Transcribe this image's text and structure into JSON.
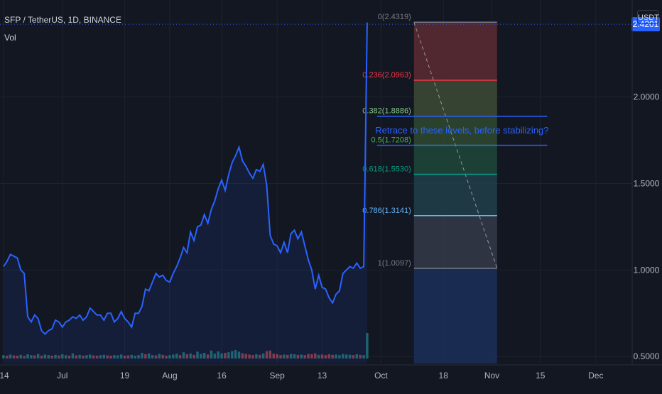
{
  "header": {
    "symbol": "SFP / TetherUS, 1D, BINANCE",
    "indicator": "Vol"
  },
  "unit_button": "USDT",
  "colors": {
    "background": "#131722",
    "price_line": "#2962ff",
    "grid": "#1e222d",
    "axis_text": "#b2b5be",
    "vol_up": "#26a69a",
    "vol_down": "#ef5350",
    "annotation": "#2962ff"
  },
  "chart_data": {
    "type": "line",
    "series": [
      {
        "values": [
          1.02,
          1.05,
          1.09,
          1.08,
          1.07,
          1.0,
          0.98,
          0.73,
          0.7,
          0.74,
          0.72,
          0.65,
          0.63,
          0.65,
          0.66,
          0.71,
          0.7,
          0.67,
          0.7,
          0.71,
          0.73,
          0.72,
          0.74,
          0.71,
          0.73,
          0.78,
          0.76,
          0.74,
          0.74,
          0.71,
          0.75,
          0.75,
          0.7,
          0.72,
          0.76,
          0.72,
          0.7,
          0.67,
          0.75,
          0.75,
          0.79,
          0.89,
          0.88,
          0.93,
          0.98,
          0.96,
          0.97,
          0.94,
          0.93,
          0.98,
          1.02,
          1.07,
          1.13,
          1.1,
          1.22,
          1.17,
          1.25,
          1.26,
          1.32,
          1.27,
          1.35,
          1.4,
          1.47,
          1.52,
          1.46,
          1.55,
          1.62,
          1.66,
          1.71,
          1.63,
          1.6,
          1.56,
          1.53,
          1.58,
          1.57,
          1.61,
          1.49,
          1.2,
          1.15,
          1.14,
          1.1,
          1.16,
          1.1,
          1.21,
          1.23,
          1.18,
          1.22,
          1.14,
          1.06,
          1.0,
          0.89,
          0.97,
          0.9,
          0.89,
          0.84,
          0.81,
          0.86,
          0.88,
          0.98,
          1.0,
          1.02,
          1.01,
          1.04,
          1.01,
          1.02,
          2.43
        ]
      }
    ],
    "volume": {
      "values": [
        1.2,
        1.0,
        1.4,
        1.1,
        1.0,
        1.3,
        0.9,
        1.5,
        1.2,
        1.1,
        1.6,
        1.0,
        1.4,
        1.2,
        1.0,
        1.3,
        1.1,
        1.5,
        1.2,
        1.0,
        1.8,
        1.1,
        1.3,
        1.0,
        1.2,
        1.4,
        1.1,
        1.0,
        1.2,
        1.3,
        1.1,
        1.0,
        1.2,
        1.1,
        1.4,
        1.0,
        1.1,
        1.3,
        1.0,
        1.2,
        2.0,
        1.5,
        1.8,
        1.2,
        1.1,
        1.6,
        1.3,
        1.0,
        1.2,
        1.4,
        1.7,
        1.2,
        2.2,
        1.5,
        1.8,
        1.3,
        2.4,
        1.6,
        2.0,
        1.4,
        2.8,
        1.7,
        2.5,
        1.8,
        2.0,
        2.2,
        2.6,
        3.0,
        2.4,
        1.8,
        1.6,
        1.4,
        1.2,
        1.5,
        1.3,
        1.8,
        2.6,
        2.8,
        1.7,
        1.5,
        1.2,
        1.4,
        1.3,
        1.6,
        1.5,
        1.3,
        1.4,
        1.2,
        1.6,
        1.5,
        1.8,
        1.3,
        1.4,
        1.2,
        1.5,
        1.3,
        1.4,
        1.2,
        1.6,
        1.4,
        1.3,
        1.2,
        1.5,
        1.3,
        1.2,
        9.0
      ],
      "up": [
        1,
        0,
        1,
        0,
        0,
        1,
        0,
        1,
        1,
        0,
        1,
        0,
        1,
        1,
        0,
        1,
        0,
        1,
        1,
        0,
        1,
        0,
        1,
        0,
        1,
        1,
        0,
        0,
        1,
        1,
        0,
        0,
        1,
        1,
        1,
        0,
        0,
        1,
        1,
        1,
        1,
        0,
        1,
        1,
        0,
        1,
        0,
        0,
        1,
        1,
        1,
        0,
        1,
        0,
        1,
        0,
        1,
        1,
        1,
        0,
        1,
        1,
        1,
        1,
        0,
        1,
        1,
        1,
        1,
        0,
        0,
        0,
        0,
        1,
        0,
        1,
        0,
        0,
        0,
        0,
        0,
        1,
        0,
        1,
        1,
        0,
        1,
        0,
        0,
        0,
        0,
        1,
        0,
        0,
        0,
        0,
        1,
        1,
        1,
        1,
        1,
        0,
        1,
        0,
        1,
        1
      ]
    },
    "x_ticks": [
      {
        "label": "14",
        "i": 0
      },
      {
        "label": "Jul",
        "i": 17
      },
      {
        "label": "19",
        "i": 35
      },
      {
        "label": "Aug",
        "i": 48
      },
      {
        "label": "16",
        "i": 63
      },
      {
        "label": "Sep",
        "i": 79
      },
      {
        "label": "13",
        "i": 92
      },
      {
        "label": "Oct",
        "i": 109
      },
      {
        "label": "18",
        "i": 127
      },
      {
        "label": "Nov",
        "i": 141
      },
      {
        "label": "15",
        "i": 155
      },
      {
        "label": "Dec",
        "i": 171
      }
    ],
    "y_ticks": [
      "0.5000",
      "1.0000",
      "1.5000",
      "2.0000"
    ],
    "y_tick_values": [
      0.5,
      1.0,
      1.5,
      2.0
    ],
    "last_price_label": "2.4201",
    "last_price": 2.4201,
    "ylim": [
      0.46,
      2.56
    ],
    "x_range": [
      -1.0,
      181.5
    ],
    "fib": {
      "i_start": 118.5,
      "i_end": 142.5,
      "levels": [
        {
          "ratio": "0",
          "value": 2.4319,
          "label": "0(2.4319)",
          "color": "#787b86",
          "fill": "#5d2a33"
        },
        {
          "ratio": "0.236",
          "value": 2.0963,
          "label": "0.236(2.0963)",
          "color": "#f23645",
          "fill": "#3d4a35"
        },
        {
          "ratio": "0.382",
          "value": 1.8886,
          "label": "0.382(1.8886)",
          "color": "#81c784",
          "fill": "#2f4a2f"
        },
        {
          "ratio": "0.5",
          "value": 1.7208,
          "label": "0.5(1.7208)",
          "color": "#4caf50",
          "fill": "#1f473a"
        },
        {
          "ratio": "0.618",
          "value": 1.553,
          "label": "0.618(1.5530)",
          "color": "#089981",
          "fill": "#22404a"
        },
        {
          "ratio": "0.786",
          "value": 1.3141,
          "label": "0.786(1.3141)",
          "color": "#64b5f6",
          "fill": "#343a46"
        },
        {
          "ratio": "1",
          "value": 1.0097,
          "label": "1(1.0097)",
          "color": "#787b86",
          "fill": null
        }
      ]
    },
    "annotation": {
      "text": "Retrace to these levels, before stabilizing?",
      "levels": [
        1.8886,
        1.7208
      ],
      "i_end": 157
    }
  }
}
